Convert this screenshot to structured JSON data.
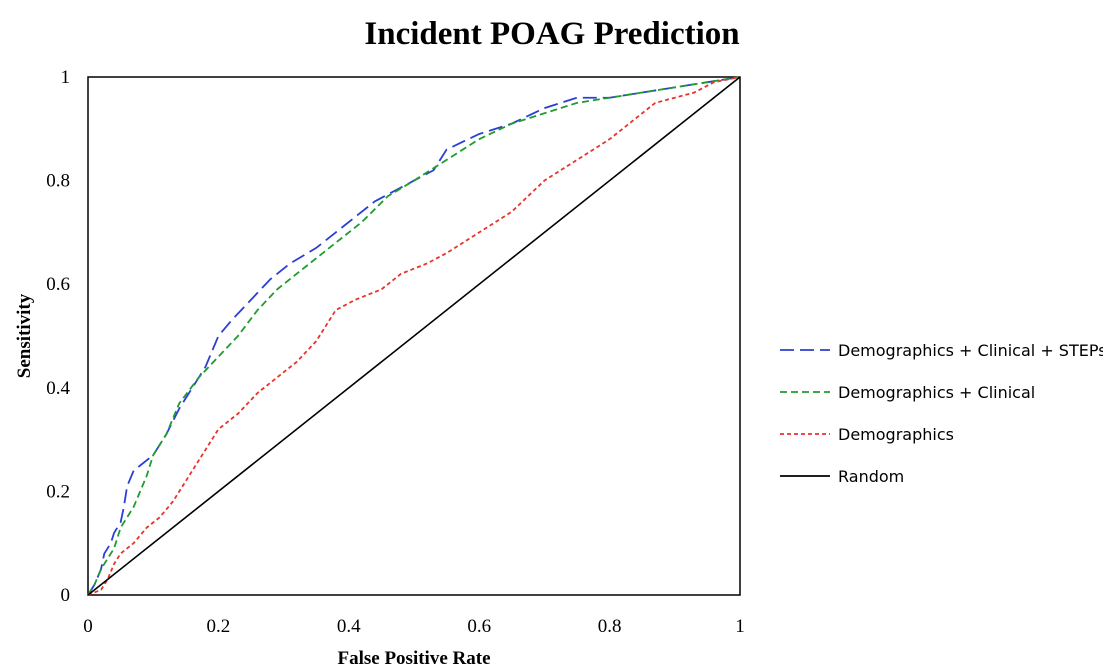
{
  "chart_data": {
    "type": "line",
    "title": "Incident POAG Prediction",
    "xlabel": "False Positive Rate",
    "ylabel": "Sensitivity",
    "xlim": [
      0,
      1
    ],
    "ylim": [
      0,
      1
    ],
    "x_ticks": [
      "0",
      "0.2",
      "0.4",
      "0.6",
      "0.8",
      "1"
    ],
    "y_ticks": [
      "0",
      "0.2",
      "0.4",
      "0.6",
      "0.8",
      "1"
    ],
    "grid": false,
    "legend_position": "right",
    "series": [
      {
        "name": "Demographics + Clinical + STEPs",
        "color": "#2b3fd6",
        "style": "long-dash",
        "points": [
          [
            0,
            0
          ],
          [
            0.01,
            0.02
          ],
          [
            0.02,
            0.05
          ],
          [
            0.025,
            0.08
          ],
          [
            0.035,
            0.1
          ],
          [
            0.04,
            0.12
          ],
          [
            0.05,
            0.14
          ],
          [
            0.055,
            0.17
          ],
          [
            0.06,
            0.21
          ],
          [
            0.07,
            0.24
          ],
          [
            0.08,
            0.25
          ],
          [
            0.09,
            0.26
          ],
          [
            0.1,
            0.27
          ],
          [
            0.12,
            0.31
          ],
          [
            0.14,
            0.36
          ],
          [
            0.16,
            0.4
          ],
          [
            0.18,
            0.44
          ],
          [
            0.2,
            0.5
          ],
          [
            0.22,
            0.53
          ],
          [
            0.25,
            0.57
          ],
          [
            0.28,
            0.61
          ],
          [
            0.31,
            0.64
          ],
          [
            0.35,
            0.67
          ],
          [
            0.38,
            0.7
          ],
          [
            0.41,
            0.73
          ],
          [
            0.44,
            0.76
          ],
          [
            0.47,
            0.78
          ],
          [
            0.5,
            0.8
          ],
          [
            0.53,
            0.82
          ],
          [
            0.55,
            0.86
          ],
          [
            0.6,
            0.89
          ],
          [
            0.65,
            0.91
          ],
          [
            0.7,
            0.94
          ],
          [
            0.75,
            0.96
          ],
          [
            0.8,
            0.96
          ],
          [
            0.85,
            0.97
          ],
          [
            0.9,
            0.98
          ],
          [
            0.95,
            0.99
          ],
          [
            1,
            1
          ]
        ]
      },
      {
        "name": "Demographics + Clinical",
        "color": "#1f9c2e",
        "style": "dash",
        "points": [
          [
            0,
            0
          ],
          [
            0.01,
            0.02
          ],
          [
            0.02,
            0.05
          ],
          [
            0.03,
            0.07
          ],
          [
            0.04,
            0.09
          ],
          [
            0.05,
            0.13
          ],
          [
            0.06,
            0.15
          ],
          [
            0.07,
            0.17
          ],
          [
            0.08,
            0.2
          ],
          [
            0.09,
            0.23
          ],
          [
            0.1,
            0.27
          ],
          [
            0.12,
            0.31
          ],
          [
            0.14,
            0.37
          ],
          [
            0.17,
            0.42
          ],
          [
            0.2,
            0.46
          ],
          [
            0.23,
            0.5
          ],
          [
            0.26,
            0.55
          ],
          [
            0.29,
            0.59
          ],
          [
            0.32,
            0.62
          ],
          [
            0.35,
            0.65
          ],
          [
            0.38,
            0.68
          ],
          [
            0.42,
            0.72
          ],
          [
            0.46,
            0.77
          ],
          [
            0.5,
            0.8
          ],
          [
            0.55,
            0.84
          ],
          [
            0.6,
            0.88
          ],
          [
            0.65,
            0.91
          ],
          [
            0.7,
            0.93
          ],
          [
            0.75,
            0.95
          ],
          [
            0.8,
            0.96
          ],
          [
            0.85,
            0.97
          ],
          [
            0.9,
            0.98
          ],
          [
            0.95,
            0.99
          ],
          [
            1,
            1
          ]
        ]
      },
      {
        "name": "Demographics",
        "color": "#e8342a",
        "style": "short-dash",
        "points": [
          [
            0,
            0
          ],
          [
            0.02,
            0.01
          ],
          [
            0.03,
            0.03
          ],
          [
            0.04,
            0.06
          ],
          [
            0.05,
            0.08
          ],
          [
            0.07,
            0.1
          ],
          [
            0.09,
            0.13
          ],
          [
            0.11,
            0.15
          ],
          [
            0.13,
            0.18
          ],
          [
            0.15,
            0.22
          ],
          [
            0.17,
            0.26
          ],
          [
            0.2,
            0.32
          ],
          [
            0.23,
            0.35
          ],
          [
            0.26,
            0.39
          ],
          [
            0.29,
            0.42
          ],
          [
            0.32,
            0.45
          ],
          [
            0.35,
            0.49
          ],
          [
            0.38,
            0.55
          ],
          [
            0.41,
            0.57
          ],
          [
            0.45,
            0.59
          ],
          [
            0.48,
            0.62
          ],
          [
            0.52,
            0.64
          ],
          [
            0.55,
            0.66
          ],
          [
            0.6,
            0.7
          ],
          [
            0.65,
            0.74
          ],
          [
            0.7,
            0.8
          ],
          [
            0.75,
            0.84
          ],
          [
            0.8,
            0.88
          ],
          [
            0.84,
            0.92
          ],
          [
            0.87,
            0.95
          ],
          [
            0.9,
            0.96
          ],
          [
            0.93,
            0.97
          ],
          [
            0.96,
            0.99
          ],
          [
            1,
            1
          ]
        ]
      },
      {
        "name": "Random",
        "color": "#000000",
        "style": "solid",
        "points": [
          [
            0,
            0
          ],
          [
            1,
            1
          ]
        ]
      }
    ]
  }
}
